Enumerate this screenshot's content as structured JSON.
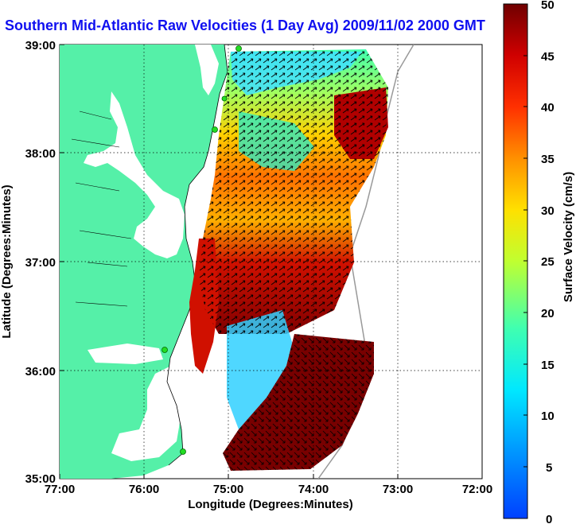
{
  "title": "Southern Mid-Atlantic Raw Velocities (1 Day Avg) 2009/11/02 2000 GMT",
  "x_axis": {
    "label": "Longitude (Degrees:Minutes)",
    "ticks": [
      "77:00",
      "76:00",
      "75:00",
      "74:00",
      "73:00",
      "72:00"
    ]
  },
  "y_axis": {
    "label": "Latitude (Degrees:Minutes)",
    "ticks": [
      "39:00",
      "38:00",
      "37:00",
      "36:00",
      "35:00"
    ]
  },
  "colorbar": {
    "label": "Surface Velocity (cm/s)",
    "ticks": [
      "50",
      "45",
      "40",
      "35",
      "30",
      "25",
      "20",
      "15",
      "10",
      "5",
      "0"
    ],
    "min": 0,
    "max": 50
  },
  "colors": {
    "land": "#55f0a8",
    "title": "#1010f0",
    "station": "#22dd22"
  },
  "stations": [
    "station-north",
    "station-delaware",
    "station-hatteras-north",
    "station-hatteras-south",
    "station-nc"
  ]
}
